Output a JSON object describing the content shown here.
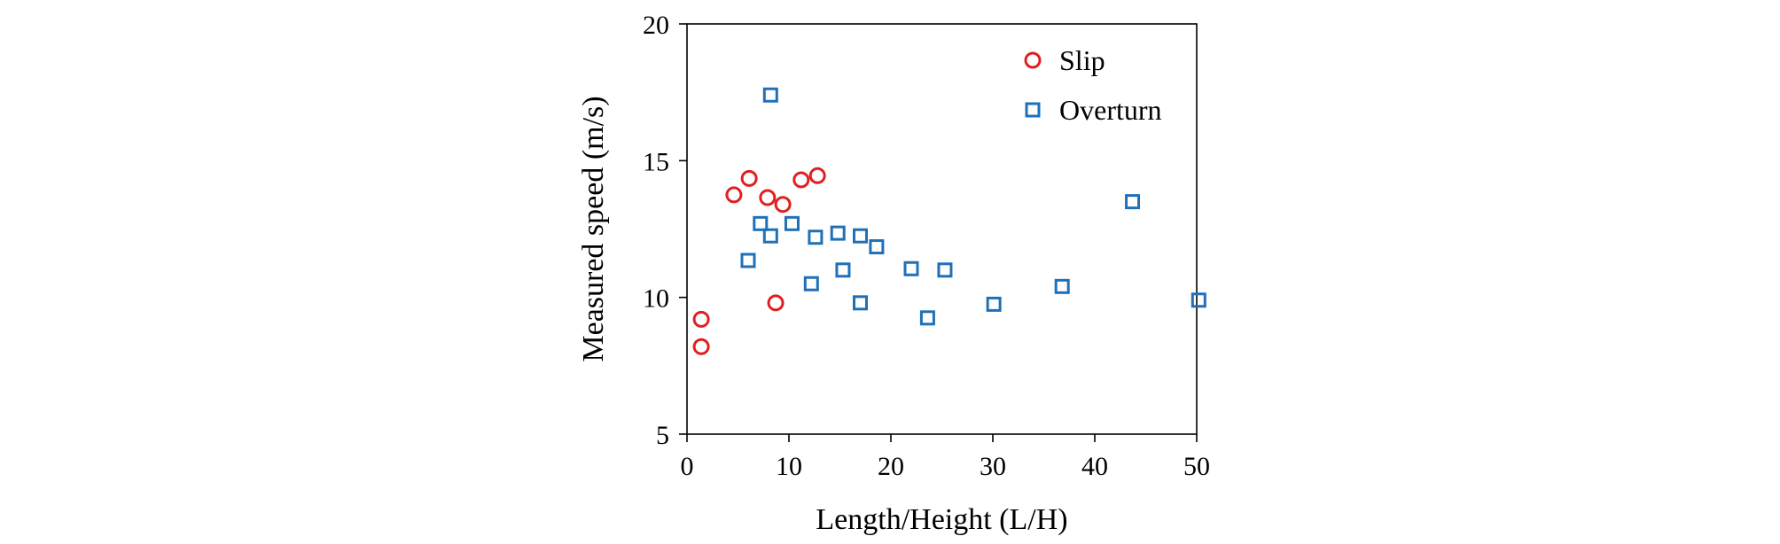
{
  "chart_data": {
    "type": "scatter",
    "title": "",
    "xlabel": "Length/Height (L/H)",
    "ylabel": "Measured speed (m/s)",
    "xlim": [
      0,
      50
    ],
    "ylim": [
      5,
      20
    ],
    "xticks": [
      0,
      10,
      20,
      30,
      40,
      50
    ],
    "yticks": [
      5,
      10,
      15,
      20
    ],
    "grid": false,
    "legend": "top-right",
    "series": [
      {
        "name": "Slip",
        "marker": "circle",
        "color": "#E02020",
        "points": [
          {
            "x": 1.4,
            "y": 9.2
          },
          {
            "x": 1.4,
            "y": 8.2
          },
          {
            "x": 4.6,
            "y": 13.75
          },
          {
            "x": 6.1,
            "y": 14.35
          },
          {
            "x": 7.9,
            "y": 13.65
          },
          {
            "x": 9.4,
            "y": 13.4
          },
          {
            "x": 11.2,
            "y": 14.3
          },
          {
            "x": 12.8,
            "y": 14.45
          },
          {
            "x": 8.7,
            "y": 9.8
          }
        ]
      },
      {
        "name": "Overturn",
        "marker": "square",
        "color": "#1F70B8",
        "points": [
          {
            "x": 8.2,
            "y": 17.4
          },
          {
            "x": 7.2,
            "y": 12.7
          },
          {
            "x": 8.2,
            "y": 12.25
          },
          {
            "x": 6.0,
            "y": 11.35
          },
          {
            "x": 10.3,
            "y": 12.7
          },
          {
            "x": 12.2,
            "y": 10.5
          },
          {
            "x": 12.6,
            "y": 12.2
          },
          {
            "x": 14.8,
            "y": 12.35
          },
          {
            "x": 15.3,
            "y": 11.0
          },
          {
            "x": 17.0,
            "y": 12.25
          },
          {
            "x": 18.6,
            "y": 11.85
          },
          {
            "x": 17.0,
            "y": 9.8
          },
          {
            "x": 22.0,
            "y": 11.05
          },
          {
            "x": 23.6,
            "y": 9.25
          },
          {
            "x": 25.3,
            "y": 11.0
          },
          {
            "x": 30.1,
            "y": 9.75
          },
          {
            "x": 36.8,
            "y": 10.4
          },
          {
            "x": 43.7,
            "y": 13.5
          },
          {
            "x": 50.2,
            "y": 9.9
          }
        ]
      }
    ]
  }
}
